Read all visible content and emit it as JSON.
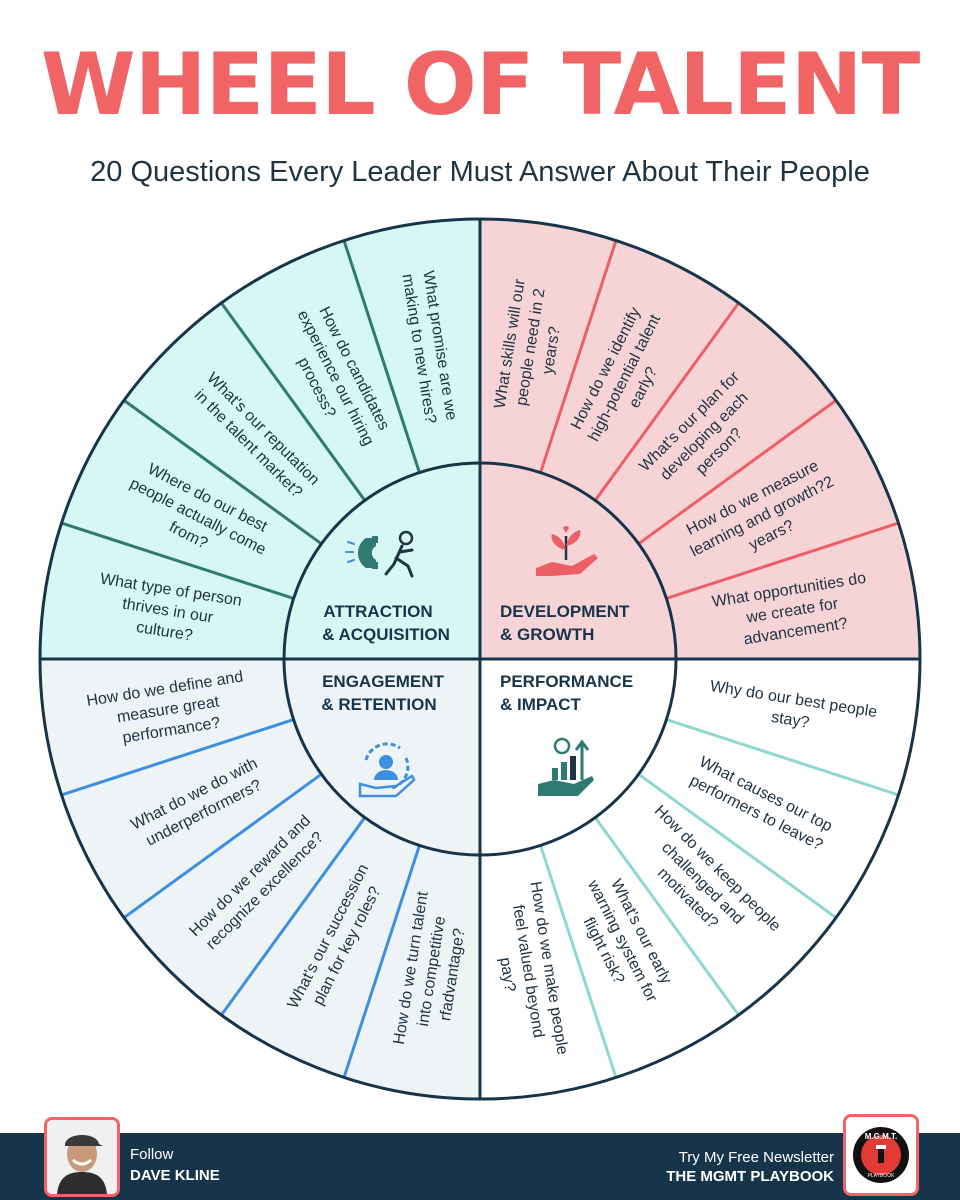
{
  "header": {
    "title": "WHEEL OF TALENT",
    "subtitle": "20 Questions Every Leader Must Answer About Their People"
  },
  "quadrants": [
    {
      "id": "attraction",
      "label_line1": "ATTRACTION",
      "label_line2": "& ACQUISITION",
      "icon": "magnet-person-icon",
      "fill": "#d6f7f3",
      "line_color": "#2f7a72",
      "questions": [
        "What type of person thrives in our culture?",
        "Where do our best people actually come from?",
        "What's our reputation in the talent market?",
        "How do candidates experience our hiring process?",
        "What promise are we making to new hires?"
      ]
    },
    {
      "id": "development",
      "label_line1": "DEVELOPMENT",
      "label_line2": "& GROWTH",
      "icon": "hand-sprout-icon",
      "fill": "#f6d4d6",
      "line_color": "#ec5f63",
      "questions": [
        "What skills will our people need in 2 years?",
        "How do we identify high-potential talent early?",
        "What's our plan for developing each person?",
        "How do we measure learning and growth?2 years?",
        "What opportunities do we create for advancement?"
      ]
    },
    {
      "id": "performance",
      "label_line1": "PERFORMANCE",
      "label_line2": "& IMPACT",
      "icon": "hand-growth-chart-icon",
      "fill": "#ffffff",
      "line_color": "#8fd8d0",
      "questions": [
        "Why do our best people stay?",
        "What causes our top performers to leave?",
        "How do we keep people challenged and motivated?",
        "What's our early warning system for flight risk?",
        "How do we make people feel valued beyond pay?"
      ]
    },
    {
      "id": "engagement",
      "label_line1": "ENGAGEMENT",
      "label_line2": "& RETENTION",
      "icon": "hand-person-cycle-icon",
      "fill": "#eef3f6",
      "line_color": "#3d8fe0",
      "questions": [
        "How do we define and measure great performance?",
        "What do we do with underperformers?",
        "How do we reward and recognize excellence?",
        "What's our succession plan for key roles?",
        "How do we turn talent into competitive rfadvantage?"
      ]
    }
  ],
  "footer": {
    "follow": "Follow",
    "name": "DAVE KLINE",
    "newsletter_line1": "Try My Free Newsletter",
    "newsletter_line2": "THE MGMT PLAYBOOK",
    "logo_text": "M.G.M.T.",
    "logo_subtext": "PLAYBOOK"
  },
  "colors": {
    "title": "#f06466",
    "navy": "#17354a",
    "text": "#1f3342"
  }
}
